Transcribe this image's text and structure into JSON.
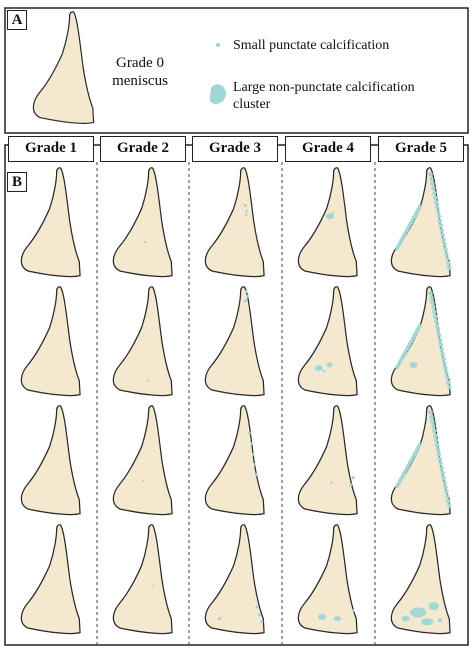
{
  "panel_a": {
    "letter": "A",
    "grade0_label_line1": "Grade 0",
    "grade0_label_line2": "meniscus",
    "legend": {
      "small_label": "Small punctate calcification",
      "large_label_line1": "Large non-punctate calcification",
      "large_label_line2": "cluster"
    }
  },
  "panel_b": {
    "letter": "B",
    "grades": [
      "Grade 1",
      "Grade 2",
      "Grade 3",
      "Grade 4",
      "Grade 5"
    ]
  },
  "colors": {
    "meniscus_fill": "#f4e8cf",
    "meniscus_stroke": "#2a2a2a",
    "calcification": "#9fd8d6",
    "frame": "#222222"
  }
}
